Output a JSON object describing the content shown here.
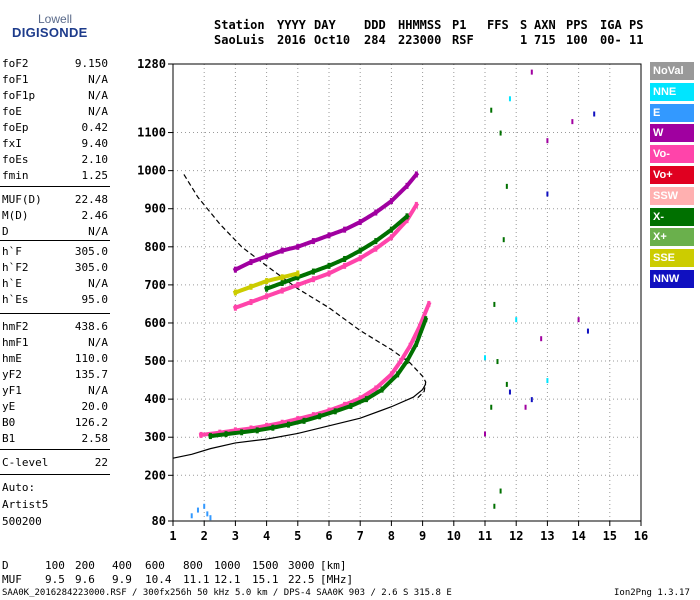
{
  "logo": {
    "line1": "Lowell",
    "line2": "DIGISONDE"
  },
  "header": {
    "row1": [
      "Station",
      "YYYY",
      "DAY",
      "DDD",
      "HHMMSS",
      "P1",
      "FFS",
      "S",
      "AXN",
      "PPS",
      "IGA",
      "PS"
    ],
    "row2": [
      "SaoLuis",
      "2016",
      "Oct10",
      "284",
      "223000",
      "RSF",
      "1",
      "715",
      "100",
      "00-",
      "11"
    ]
  },
  "params": [
    {
      "label": "foF2",
      "value": "9.150"
    },
    {
      "label": "foF1",
      "value": "N/A"
    },
    {
      "label": "foF1p",
      "value": "N/A"
    },
    {
      "label": "foE",
      "value": "N/A"
    },
    {
      "label": "foEp",
      "value": "0.42"
    },
    {
      "label": "fxI",
      "value": "9.40"
    },
    {
      "label": "foEs",
      "value": "2.10"
    },
    {
      "label": "fmin",
      "value": "1.25"
    },
    {
      "label": "MUF(D)",
      "value": "22.48"
    },
    {
      "label": "M(D)",
      "value": "2.46"
    },
    {
      "label": "D",
      "value": "N/A"
    },
    {
      "label": "h`F",
      "value": "305.0"
    },
    {
      "label": "h`F2",
      "value": "305.0"
    },
    {
      "label": "h`E",
      "value": "N/A"
    },
    {
      "label": "h`Es",
      "value": "95.0"
    },
    {
      "label": "hmF2",
      "value": "438.6"
    },
    {
      "label": "hmF1",
      "value": "N/A"
    },
    {
      "label": "hmE",
      "value": "110.0"
    },
    {
      "label": "yF2",
      "value": "135.7"
    },
    {
      "label": "yF1",
      "value": "N/A"
    },
    {
      "label": "yE",
      "value": "20.0"
    },
    {
      "label": "B0",
      "value": "126.2"
    },
    {
      "label": "B1",
      "value": "2.58"
    },
    {
      "label": "C-level",
      "value": "22"
    }
  ],
  "auto": [
    "Auto:",
    "Artist5",
    "500200"
  ],
  "legend": [
    {
      "label": "NoVal",
      "bg": "#999999",
      "fg": "#ffffff"
    },
    {
      "label": "NNE",
      "bg": "#00e5ff",
      "fg": "#ffffff"
    },
    {
      "label": "E",
      "bg": "#3399ff",
      "fg": "#ffffff"
    },
    {
      "label": "W",
      "bg": "#a000a0",
      "fg": "#ffffff"
    },
    {
      "label": "Vo-",
      "bg": "#ff44aa",
      "fg": "#ffffff"
    },
    {
      "label": "Vo+",
      "bg": "#e00020",
      "fg": "#ffffff"
    },
    {
      "label": "SSW",
      "bg": "#ffb0b0",
      "fg": "#ffffff"
    },
    {
      "label": "X-",
      "bg": "#007000",
      "fg": "#ffffff"
    },
    {
      "label": "X+",
      "bg": "#6ab04c",
      "fg": "#ffffff"
    },
    {
      "label": "SSE",
      "bg": "#cccc00",
      "fg": "#ffffff"
    },
    {
      "label": "NNW",
      "bg": "#1010c0",
      "fg": "#ffffff"
    }
  ],
  "table": {
    "d_label": "D",
    "d_values": [
      "100",
      "200",
      "400",
      "600",
      "800",
      "1000",
      "1500",
      "3000"
    ],
    "d_unit": "[km]",
    "muf_label": "MUF",
    "muf_values": [
      "9.5",
      "9.6",
      "9.9",
      "10.4",
      "11.1",
      "12.1",
      "15.1",
      "22.5"
    ],
    "muf_unit": "[MHz]"
  },
  "footer": {
    "left": "SAA0K_2016284223000.RSF / 300fx256h 50 kHz 5.0 km / DPS-4 SAA0K 903 / 2.6 S 315.8 E",
    "right": "Ion2Png 1.3.17"
  },
  "chart_data": {
    "type": "scatter",
    "xlim": [
      1,
      16
    ],
    "ylim": [
      80,
      1280
    ],
    "x_ticks": [
      1,
      2,
      3,
      4,
      5,
      6,
      7,
      8,
      9,
      10,
      11,
      12,
      13,
      14,
      15,
      16
    ],
    "y_ticks": [
      80,
      200,
      300,
      400,
      500,
      600,
      700,
      800,
      900,
      1000,
      1100,
      1280
    ],
    "grid": true,
    "series": [
      {
        "type": "line",
        "style": "dashed",
        "color": "#000000",
        "x": [
          1.35,
          1.8,
          2.5,
          3.2,
          4.0,
          5.0,
          6.0,
          7.0,
          8.0,
          8.6,
          9.0,
          9.1,
          9.05,
          8.8
        ],
        "y": [
          990,
          930,
          860,
          800,
          750,
          690,
          640,
          580,
          530,
          495,
          460,
          445,
          420,
          400
        ]
      },
      {
        "type": "line",
        "style": "solid",
        "color": "#000000",
        "x": [
          1.0,
          1.6,
          2.2,
          3.0,
          4.0,
          5.0,
          6.0,
          7.0,
          8.0,
          8.7,
          9.0,
          9.1
        ],
        "y": [
          245,
          255,
          270,
          285,
          295,
          310,
          330,
          350,
          380,
          405,
          425,
          440
        ]
      },
      {
        "type": "trace",
        "color": "#ff44aa",
        "x": [
          1.9,
          2.5,
          3.0,
          3.5,
          4.0,
          4.5,
          5.0,
          5.5,
          6.0,
          6.5,
          7.0,
          7.5,
          8.0,
          8.3,
          8.6,
          8.9,
          9.2
        ],
        "y": [
          306,
          312,
          318,
          323,
          330,
          338,
          348,
          358,
          370,
          385,
          402,
          428,
          465,
          500,
          540,
          590,
          650
        ]
      },
      {
        "type": "trace",
        "color": "#007000",
        "x": [
          2.2,
          2.7,
          3.2,
          3.7,
          4.2,
          4.7,
          5.2,
          5.7,
          6.2,
          6.7,
          7.2,
          7.7,
          8.2,
          8.5,
          8.8,
          9.1
        ],
        "y": [
          303,
          308,
          313,
          318,
          325,
          333,
          343,
          355,
          368,
          382,
          400,
          425,
          465,
          500,
          545,
          610
        ]
      },
      {
        "type": "trace",
        "color": "#a000a0",
        "x": [
          3.0,
          3.5,
          4.0,
          4.5,
          5.0,
          5.5,
          6.0,
          6.5,
          7.0,
          7.5,
          8.0,
          8.5,
          8.8
        ],
        "y": [
          740,
          760,
          775,
          790,
          800,
          815,
          830,
          845,
          865,
          890,
          920,
          960,
          990
        ]
      },
      {
        "type": "trace",
        "color": "#ff44aa",
        "x": [
          3.0,
          3.5,
          4.0,
          4.5,
          5.0,
          5.5,
          6.0,
          6.5,
          7.0,
          7.5,
          8.0,
          8.5,
          8.8
        ],
        "y": [
          640,
          655,
          670,
          685,
          700,
          715,
          730,
          750,
          770,
          795,
          825,
          870,
          910
        ]
      },
      {
        "type": "trace",
        "color": "#007000",
        "x": [
          4.0,
          4.5,
          5.0,
          5.5,
          6.0,
          6.5,
          7.0,
          7.5,
          8.0,
          8.5
        ],
        "y": [
          690,
          705,
          720,
          735,
          750,
          768,
          790,
          815,
          845,
          880
        ]
      },
      {
        "type": "trace",
        "color": "#cccc00",
        "x": [
          3.0,
          3.5,
          4.0,
          4.5,
          5.0
        ],
        "y": [
          680,
          695,
          710,
          720,
          730
        ]
      },
      {
        "type": "scatter",
        "color": "#007000",
        "x": [
          11.2,
          11.5,
          11.7,
          11.6,
          11.3,
          11.4,
          11.7,
          11.2,
          11.5,
          11.3
        ],
        "y": [
          1160,
          1100,
          960,
          820,
          650,
          500,
          440,
          380,
          160,
          120
        ]
      },
      {
        "type": "scatter",
        "color": "#a000a0",
        "x": [
          12.5,
          13.0,
          13.8,
          14.0,
          12.8,
          12.3,
          11.0
        ],
        "y": [
          1260,
          1080,
          1130,
          610,
          560,
          380,
          310
        ]
      },
      {
        "type": "scatter",
        "color": "#1010c0",
        "x": [
          14.5,
          13.0,
          14.3,
          12.5,
          11.8
        ],
        "y": [
          1150,
          940,
          580,
          400,
          420
        ]
      },
      {
        "type": "scatter",
        "color": "#3399ff",
        "x": [
          1.8,
          2.0,
          2.1,
          2.2,
          1.6
        ],
        "y": [
          110,
          120,
          100,
          90,
          95
        ]
      },
      {
        "type": "scatter",
        "color": "#00e5ff",
        "x": [
          11.8,
          12.0,
          11.0,
          13.0
        ],
        "y": [
          1190,
          610,
          510,
          450
        ]
      }
    ]
  }
}
